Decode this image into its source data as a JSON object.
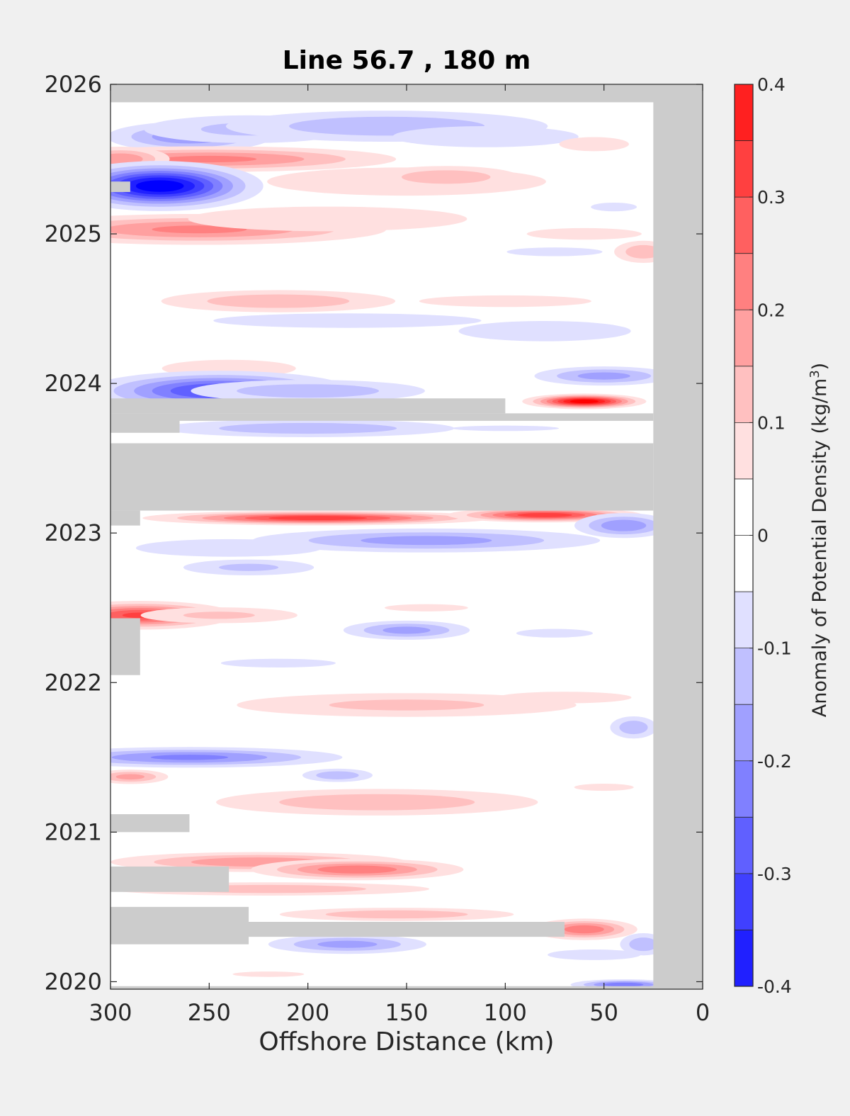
{
  "chart_data": {
    "type": "heatmap",
    "title": "Line 56.7 , 180 m",
    "xlabel": "Offshore Distance (km)",
    "x_axis": {
      "range": [
        300,
        0
      ],
      "reversed": true,
      "ticks": [
        300,
        250,
        200,
        150,
        100,
        50,
        0
      ],
      "tick_labels": [
        "300",
        "250",
        "200",
        "150",
        "100",
        "50",
        "0"
      ]
    },
    "y_axis": {
      "range": [
        2019.95,
        2026
      ],
      "ticks": [
        2020,
        2021,
        2022,
        2023,
        2024,
        2025,
        2026
      ],
      "tick_labels": [
        "2020",
        "2021",
        "2022",
        "2023",
        "2024",
        "2025",
        "2026"
      ]
    },
    "colorbar": {
      "label_main": "Anomaly of Potential Density (kg/m",
      "label_sup": "3",
      "label_end": ")",
      "range": [
        -0.4,
        0.4
      ],
      "levels": [
        -0.4,
        -0.35,
        -0.3,
        -0.25,
        -0.2,
        -0.15,
        -0.1,
        -0.05,
        0,
        0.05,
        0.1,
        0.15,
        0.2,
        0.25,
        0.3,
        0.35,
        0.4
      ],
      "ticks": [
        -0.4,
        -0.3,
        -0.2,
        -0.1,
        0,
        0.1,
        0.2,
        0.3,
        0.4
      ],
      "tick_labels": [
        "-0.4",
        "-0.3",
        "-0.2",
        "-0.1",
        "0",
        "0.1",
        "0.2",
        "0.3",
        "0.4"
      ],
      "colors": [
        "#0000ff",
        "#2020ff",
        "#4040ff",
        "#6060ff",
        "#8080ff",
        "#a0a0ff",
        "#c0c0ff",
        "#e0e0ff",
        "#ffffff",
        "#ffffff",
        "#ffe0e0",
        "#ffc0c0",
        "#ffa0a0",
        "#ff8080",
        "#ff6060",
        "#ff4040",
        "#ff2020",
        "#ff0000"
      ]
    },
    "missing_color": "#cccccc",
    "grid": false,
    "missing_regions": [
      {
        "x": [
          300,
          0
        ],
        "y": [
          2025.88,
          2026
        ]
      },
      {
        "x": [
          25,
          0
        ],
        "y": [
          2019.95,
          2026
        ]
      },
      {
        "x": [
          300,
          0
        ],
        "y": [
          2019.95,
          2019.97
        ]
      },
      {
        "x": [
          300,
          25
        ],
        "y": [
          2023.6,
          2023.15
        ]
      },
      {
        "x": [
          300,
          100
        ],
        "y": [
          2023.9,
          2023.8
        ]
      },
      {
        "x": [
          300,
          265
        ],
        "y": [
          2023.8,
          2023.67
        ]
      },
      {
        "x": [
          300,
          25
        ],
        "y": [
          2023.8,
          2023.75
        ]
      },
      {
        "x": [
          300,
          285
        ],
        "y": [
          2023.15,
          2023.05
        ]
      },
      {
        "x": [
          300,
          285
        ],
        "y": [
          2022.43,
          2022.05
        ]
      },
      {
        "x": [
          300,
          260
        ],
        "y": [
          2021.12,
          2021.0
        ]
      },
      {
        "x": [
          300,
          240
        ],
        "y": [
          2020.77,
          2020.6
        ]
      },
      {
        "x": [
          300,
          230
        ],
        "y": [
          2020.5,
          2020.25
        ]
      },
      {
        "x": [
          300,
          70
        ],
        "y": [
          2020.4,
          2020.3
        ]
      },
      {
        "x": [
          300,
          290
        ],
        "y": [
          2025.35,
          2025.28
        ]
      }
    ],
    "anomalies": [
      {
        "x": 260,
        "y": 2025.65,
        "sx": 25,
        "sy": 0.06,
        "v": -0.2
      },
      {
        "x": 230,
        "y": 2025.7,
        "sx": 40,
        "sy": 0.07,
        "v": -0.12
      },
      {
        "x": 160,
        "y": 2025.72,
        "sx": 55,
        "sy": 0.07,
        "v": -0.15
      },
      {
        "x": 110,
        "y": 2025.65,
        "sx": 40,
        "sy": 0.06,
        "v": -0.1
      },
      {
        "x": 250,
        "y": 2025.5,
        "sx": 55,
        "sy": 0.05,
        "v": 0.22
      },
      {
        "x": 295,
        "y": 2025.5,
        "sx": 15,
        "sy": 0.05,
        "v": 0.2
      },
      {
        "x": 275,
        "y": 2025.32,
        "sx": 25,
        "sy": 0.08,
        "v": -0.45
      },
      {
        "x": 150,
        "y": 2025.35,
        "sx": 60,
        "sy": 0.08,
        "v": 0.1
      },
      {
        "x": 130,
        "y": 2025.38,
        "sx": 25,
        "sy": 0.05,
        "v": 0.15
      },
      {
        "x": 55,
        "y": 2025.6,
        "sx": 15,
        "sy": 0.04,
        "v": 0.1
      },
      {
        "x": 255,
        "y": 2025.03,
        "sx": 55,
        "sy": 0.06,
        "v": 0.22
      },
      {
        "x": 190,
        "y": 2025.1,
        "sx": 60,
        "sy": 0.07,
        "v": 0.1
      },
      {
        "x": 60,
        "y": 2025.0,
        "sx": 30,
        "sy": 0.04,
        "v": 0.08
      },
      {
        "x": 30,
        "y": 2024.88,
        "sx": 10,
        "sy": 0.05,
        "v": 0.15
      },
      {
        "x": 75,
        "y": 2024.88,
        "sx": 25,
        "sy": 0.03,
        "v": -0.08
      },
      {
        "x": 45,
        "y": 2025.18,
        "sx": 12,
        "sy": 0.03,
        "v": -0.08
      },
      {
        "x": 215,
        "y": 2024.55,
        "sx": 40,
        "sy": 0.05,
        "v": 0.15
      },
      {
        "x": 100,
        "y": 2024.55,
        "sx": 45,
        "sy": 0.04,
        "v": 0.08
      },
      {
        "x": 180,
        "y": 2024.42,
        "sx": 70,
        "sy": 0.05,
        "v": -0.08
      },
      {
        "x": 80,
        "y": 2024.35,
        "sx": 45,
        "sy": 0.07,
        "v": -0.08
      },
      {
        "x": 240,
        "y": 2024.1,
        "sx": 35,
        "sy": 0.06,
        "v": 0.08
      },
      {
        "x": 245,
        "y": 2023.95,
        "sx": 35,
        "sy": 0.07,
        "v": -0.32
      },
      {
        "x": 200,
        "y": 2023.95,
        "sx": 40,
        "sy": 0.05,
        "v": -0.15
      },
      {
        "x": 50,
        "y": 2024.05,
        "sx": 22,
        "sy": 0.04,
        "v": -0.18
      },
      {
        "x": 60,
        "y": 2023.88,
        "sx": 15,
        "sy": 0.025,
        "v": 0.45
      },
      {
        "x": 200,
        "y": 2023.7,
        "sx": 50,
        "sy": 0.04,
        "v": -0.15
      },
      {
        "x": 100,
        "y": 2023.7,
        "sx": 45,
        "sy": 0.03,
        "v": -0.06
      },
      {
        "x": 195,
        "y": 2023.1,
        "sx": 45,
        "sy": 0.025,
        "v": 0.35
      },
      {
        "x": 80,
        "y": 2023.12,
        "sx": 25,
        "sy": 0.025,
        "v": 0.35
      },
      {
        "x": 40,
        "y": 2023.05,
        "sx": 15,
        "sy": 0.05,
        "v": -0.2
      },
      {
        "x": 140,
        "y": 2022.95,
        "sx": 55,
        "sy": 0.05,
        "v": -0.18
      },
      {
        "x": 240,
        "y": 2022.9,
        "sx": 40,
        "sy": 0.05,
        "v": -0.1
      },
      {
        "x": 230,
        "y": 2022.77,
        "sx": 25,
        "sy": 0.04,
        "v": -0.12
      },
      {
        "x": 285,
        "y": 2022.45,
        "sx": 25,
        "sy": 0.05,
        "v": 0.32
      },
      {
        "x": 245,
        "y": 2022.45,
        "sx": 30,
        "sy": 0.04,
        "v": 0.12
      },
      {
        "x": 140,
        "y": 2022.5,
        "sx": 35,
        "sy": 0.04,
        "v": 0.06
      },
      {
        "x": 150,
        "y": 2022.35,
        "sx": 20,
        "sy": 0.04,
        "v": -0.18
      },
      {
        "x": 75,
        "y": 2022.33,
        "sx": 20,
        "sy": 0.03,
        "v": -0.08
      },
      {
        "x": 215,
        "y": 2022.13,
        "sx": 30,
        "sy": 0.03,
        "v": -0.08
      },
      {
        "x": 150,
        "y": 2021.85,
        "sx": 65,
        "sy": 0.06,
        "v": 0.12
      },
      {
        "x": 70,
        "y": 2021.9,
        "sx": 35,
        "sy": 0.04,
        "v": 0.08
      },
      {
        "x": 35,
        "y": 2021.7,
        "sx": 8,
        "sy": 0.05,
        "v": -0.15
      },
      {
        "x": 260,
        "y": 2021.5,
        "sx": 45,
        "sy": 0.04,
        "v": -0.22
      },
      {
        "x": 290,
        "y": 2021.37,
        "sx": 12,
        "sy": 0.03,
        "v": 0.18
      },
      {
        "x": 185,
        "y": 2021.38,
        "sx": 12,
        "sy": 0.03,
        "v": -0.15
      },
      {
        "x": 165,
        "y": 2021.2,
        "sx": 55,
        "sy": 0.06,
        "v": 0.15
      },
      {
        "x": 50,
        "y": 2021.3,
        "sx": 25,
        "sy": 0.04,
        "v": 0.06
      },
      {
        "x": 225,
        "y": 2020.8,
        "sx": 45,
        "sy": 0.04,
        "v": 0.2
      },
      {
        "x": 175,
        "y": 2020.75,
        "sx": 30,
        "sy": 0.04,
        "v": 0.25
      },
      {
        "x": 220,
        "y": 2020.62,
        "sx": 55,
        "sy": 0.03,
        "v": 0.15
      },
      {
        "x": 155,
        "y": 2020.45,
        "sx": 40,
        "sy": 0.03,
        "v": 0.15
      },
      {
        "x": 60,
        "y": 2020.35,
        "sx": 15,
        "sy": 0.04,
        "v": 0.25
      },
      {
        "x": 180,
        "y": 2020.25,
        "sx": 25,
        "sy": 0.04,
        "v": -0.18
      },
      {
        "x": 55,
        "y": 2020.18,
        "sx": 20,
        "sy": 0.03,
        "v": -0.1
      },
      {
        "x": 30,
        "y": 2020.25,
        "sx": 8,
        "sy": 0.05,
        "v": -0.15
      },
      {
        "x": 220,
        "y": 2020.05,
        "sx": 30,
        "sy": 0.03,
        "v": 0.06
      },
      {
        "x": 40,
        "y": 2019.98,
        "sx": 15,
        "sy": 0.02,
        "v": -0.25
      }
    ]
  }
}
